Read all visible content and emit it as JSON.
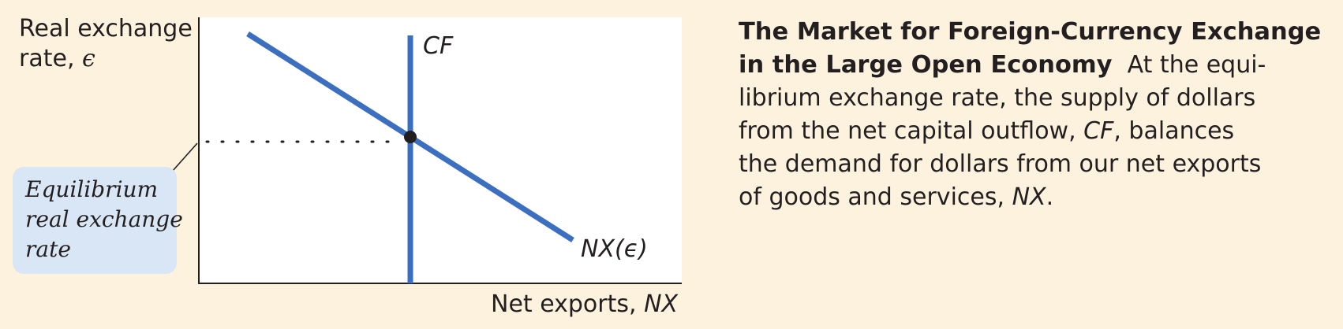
{
  "diagram": {
    "y_axis_label_line1": "Real exchange",
    "y_axis_label_line2_text": "rate, ",
    "y_axis_label_line2_symbol": "ϵ",
    "x_axis_label_text": "Net exports, ",
    "x_axis_label_symbol": "NX",
    "supply_curve_label": "CF",
    "demand_curve_label": "NX(ϵ)",
    "callout_lines": [
      "Equilibrium",
      "real exchange",
      "rate"
    ],
    "colors": {
      "background": "#fcf2de",
      "curves": "#3d6fc1",
      "callout_fill": "#d9e6f5",
      "plot_fill": "#ffffff",
      "text": "#231f20"
    }
  },
  "caption": {
    "title_line1": "The Market for Foreign-Currency Exchange",
    "title_line2": "in the Large Open Economy",
    "line2_rest": "  At the equi-",
    "line3": "librium exchange rate, the supply of dollars",
    "line4_pre": "from the net capital outflow, ",
    "line4_ital": "CF",
    "line4_post": ", balances",
    "line5": "the demand for dollars from our net exports",
    "line6_pre": "of goods and services, ",
    "line6_ital": "NX",
    "line6_post": "."
  }
}
